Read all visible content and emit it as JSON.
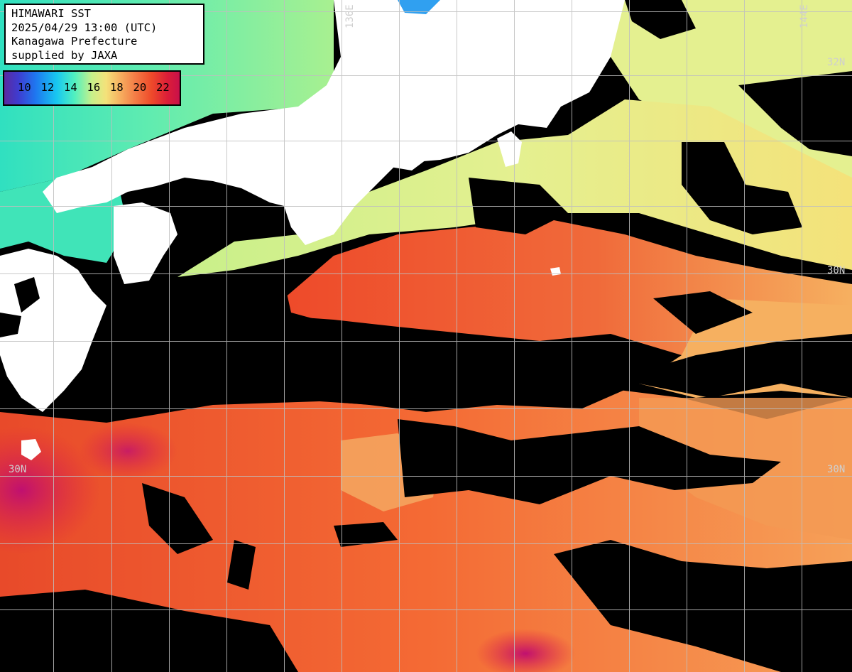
{
  "header": {
    "title": "HIMAWARI SST",
    "timestamp": "2025/04/29 13:00 (UTC)",
    "region": "Kanagawa Prefecture",
    "credit": "supplied by JAXA"
  },
  "legend": {
    "unit": "",
    "ticks": [
      "10",
      "12",
      "14",
      "16",
      "18",
      "20",
      "22"
    ],
    "colors": [
      "#5a2aa0",
      "#1e78f0",
      "#18c8f0",
      "#50f0c0",
      "#c8f08a",
      "#f4e27a",
      "#f6b060",
      "#f48048",
      "#ee4a2a",
      "#c8104a"
    ]
  },
  "grid_labels": {
    "lon_left": "136E",
    "lon_right": "144E",
    "lat_top_right": "32N",
    "lat_mid_right": "30N",
    "lat_lower_left": "30N",
    "lat_lower_right": "30N"
  },
  "colors": {
    "land": "#ffffff",
    "cloud_mask": "#000000",
    "grid": "#bfbfbf",
    "cold_water": "#30e0c0",
    "cool_water": "#c8f08a",
    "warm_water": "#f6a860",
    "hot_water": "#ee4a2a",
    "hottest_water": "#c8104a"
  }
}
